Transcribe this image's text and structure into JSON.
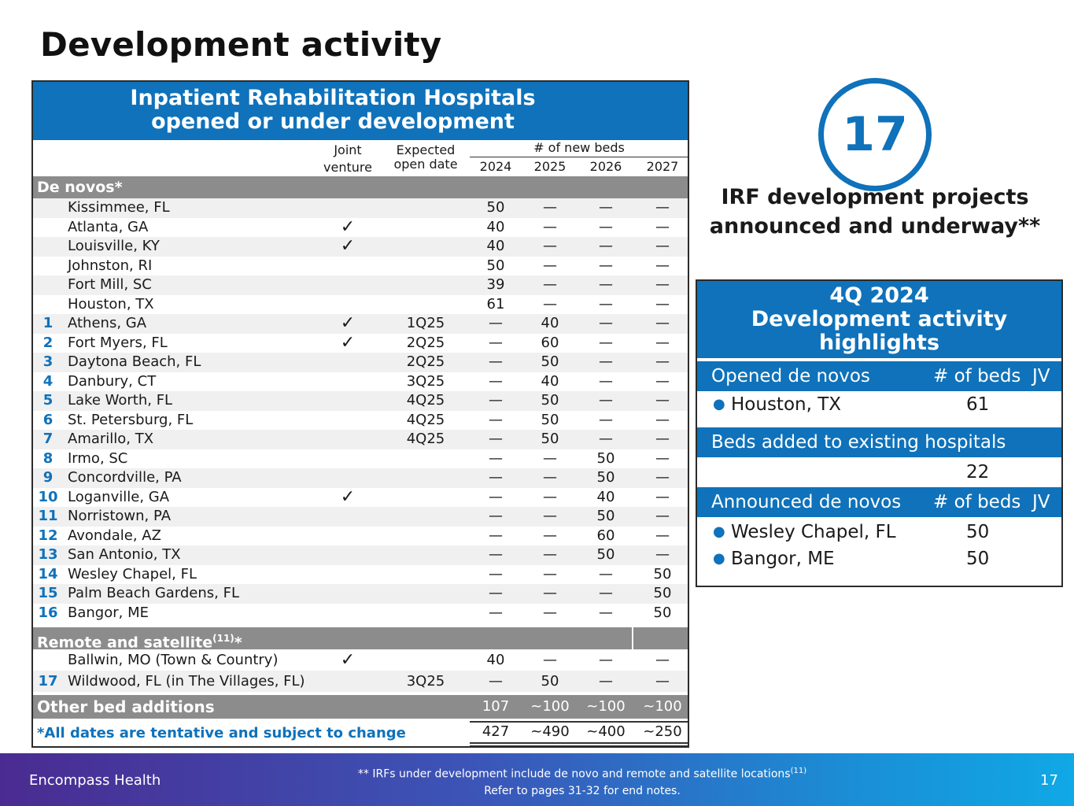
{
  "page": {
    "title": "Development activity",
    "page_number": "17",
    "brand": "Encompass Health"
  },
  "table": {
    "header_line1": "Inpatient Rehabilitation Hospitals",
    "header_line2": "opened or under development",
    "col_jv_1": "Joint",
    "col_jv_2": "venture",
    "col_od_1": "Expected",
    "col_od_2": "open date",
    "new_beds": "# of new beds",
    "years": [
      "2024",
      "2025",
      "2026",
      "2027"
    ],
    "checkmark": "✓",
    "denovo_label": "De novos*",
    "denovo_rows": [
      {
        "num": "",
        "loc": "Kissimmee, FL",
        "jv": false,
        "od": "",
        "b": [
          "50",
          "—",
          "—",
          "—"
        ]
      },
      {
        "num": "",
        "loc": "Atlanta, GA",
        "jv": true,
        "od": "",
        "b": [
          "40",
          "—",
          "—",
          "—"
        ]
      },
      {
        "num": "",
        "loc": "Louisville, KY",
        "jv": true,
        "od": "",
        "b": [
          "40",
          "—",
          "—",
          "—"
        ]
      },
      {
        "num": "",
        "loc": "Johnston, RI",
        "jv": false,
        "od": "",
        "b": [
          "50",
          "—",
          "—",
          "—"
        ]
      },
      {
        "num": "",
        "loc": "Fort Mill, SC",
        "jv": false,
        "od": "",
        "b": [
          "39",
          "—",
          "—",
          "—"
        ]
      },
      {
        "num": "",
        "loc": "Houston, TX",
        "jv": false,
        "od": "",
        "b": [
          "61",
          "—",
          "—",
          "—"
        ]
      },
      {
        "num": "1",
        "loc": "Athens, GA",
        "jv": true,
        "od": "1Q25",
        "b": [
          "—",
          "40",
          "—",
          "—"
        ]
      },
      {
        "num": "2",
        "loc": "Fort Myers, FL",
        "jv": true,
        "od": "2Q25",
        "b": [
          "—",
          "60",
          "—",
          "—"
        ]
      },
      {
        "num": "3",
        "loc": "Daytona Beach, FL",
        "jv": false,
        "od": "2Q25",
        "b": [
          "—",
          "50",
          "—",
          "—"
        ]
      },
      {
        "num": "4",
        "loc": "Danbury, CT",
        "jv": false,
        "od": "3Q25",
        "b": [
          "—",
          "40",
          "—",
          "—"
        ]
      },
      {
        "num": "5",
        "loc": "Lake Worth, FL",
        "jv": false,
        "od": "4Q25",
        "b": [
          "—",
          "50",
          "—",
          "—"
        ]
      },
      {
        "num": "6",
        "loc": "St. Petersburg, FL",
        "jv": false,
        "od": "4Q25",
        "b": [
          "—",
          "50",
          "—",
          "—"
        ]
      },
      {
        "num": "7",
        "loc": "Amarillo, TX",
        "jv": false,
        "od": "4Q25",
        "b": [
          "—",
          "50",
          "—",
          "—"
        ]
      },
      {
        "num": "8",
        "loc": "Irmo, SC",
        "jv": false,
        "od": "",
        "b": [
          "—",
          "—",
          "50",
          "—"
        ]
      },
      {
        "num": "9",
        "loc": "Concordville, PA",
        "jv": false,
        "od": "",
        "b": [
          "—",
          "—",
          "50",
          "—"
        ]
      },
      {
        "num": "10",
        "loc": "Loganville, GA",
        "jv": true,
        "od": "",
        "b": [
          "—",
          "—",
          "40",
          "—"
        ]
      },
      {
        "num": "11",
        "loc": "Norristown, PA",
        "jv": false,
        "od": "",
        "b": [
          "—",
          "—",
          "50",
          "—"
        ]
      },
      {
        "num": "12",
        "loc": "Avondale, AZ",
        "jv": false,
        "od": "",
        "b": [
          "—",
          "—",
          "60",
          "—"
        ]
      },
      {
        "num": "13",
        "loc": "San Antonio, TX",
        "jv": false,
        "od": "",
        "b": [
          "—",
          "—",
          "50",
          "—"
        ]
      },
      {
        "num": "14",
        "loc": "Wesley Chapel, FL",
        "jv": false,
        "od": "",
        "b": [
          "—",
          "—",
          "—",
          "50"
        ]
      },
      {
        "num": "15",
        "loc": "Palm Beach Gardens, FL",
        "jv": false,
        "od": "",
        "b": [
          "—",
          "—",
          "—",
          "50"
        ]
      },
      {
        "num": "16",
        "loc": "Bangor, ME",
        "jv": false,
        "od": "",
        "b": [
          "—",
          "—",
          "—",
          "50"
        ]
      }
    ],
    "remote_label": "Remote and satellite",
    "remote_sup": "(11)",
    "remote_star": "*",
    "remote_rows": [
      {
        "num": "",
        "loc": "Ballwin, MO (Town & Country)",
        "jv": true,
        "od": "",
        "b": [
          "40",
          "—",
          "—",
          "—"
        ]
      },
      {
        "num": "17",
        "loc": "Wildwood, FL (in The Villages, FL)",
        "jv": false,
        "od": "3Q25",
        "b": [
          "—",
          "50",
          "—",
          "—"
        ]
      }
    ],
    "other_label": "Other bed additions",
    "other_values": [
      "107",
      "~100",
      "~100",
      "~100"
    ],
    "footnote": "*All dates are tentative and subject to change",
    "totals": [
      "427",
      "~490",
      "~400",
      "~250"
    ]
  },
  "summary": {
    "count": "17",
    "caption_line1": "IRF development projects",
    "caption_line2": "announced and underway**"
  },
  "highlights": {
    "head_line1": "4Q 2024",
    "head_line2": "Development activity",
    "head_line3": "highlights",
    "opened_label": "Opened de novos",
    "beds_label": "# of beds",
    "jv_label": "JV",
    "opened": [
      {
        "name": "Houston, TX",
        "beds": "61"
      }
    ],
    "added_label": "Beds added to existing hospitals",
    "added_value": "22",
    "announced_label": "Announced de novos",
    "announced": [
      {
        "name": "Wesley Chapel, FL",
        "beds": "50"
      },
      {
        "name": "Bangor, ME",
        "beds": "50"
      }
    ]
  },
  "footer": {
    "note_line1": "** IRFs under development include de novo and remote and satellite locations",
    "note_sup": "(11)",
    "note_line2": "Refer to pages 31-32 for end notes."
  }
}
